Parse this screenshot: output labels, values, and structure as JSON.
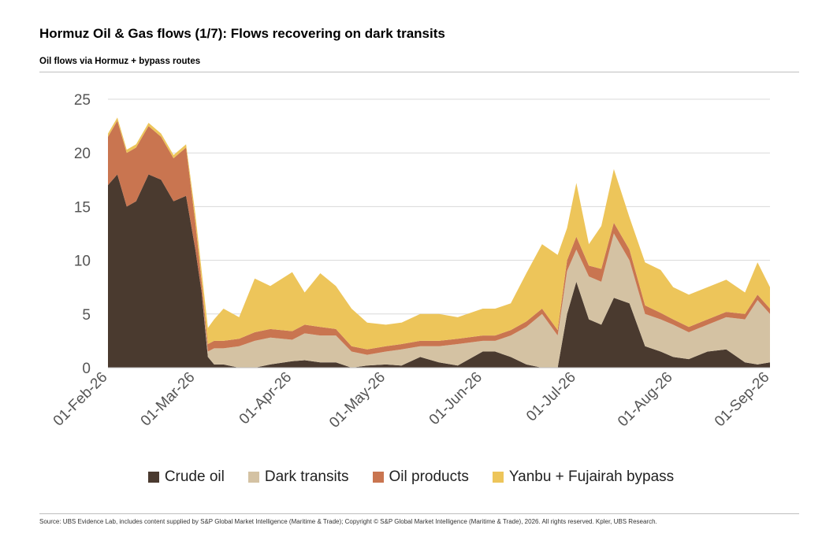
{
  "title": "Hormuz Oil & Gas flows (1/7): Flows recovering on dark transits",
  "subtitle": "Oil flows via Hormuz + bypass routes",
  "source": "Source: UBS Evidence Lab, includes content supplied by S&P Global Market Intelligence (Maritime & Trade); Copyright © S&P Global Market Intelligence (Maritime & Trade), 2026. All rights reserved. Kpler, UBS Research.",
  "colors": {
    "crude": "#4a3a2f",
    "dark": "#d4c2a3",
    "products": "#c97550",
    "bypass": "#edc55a",
    "grid": "#d9d9d9"
  },
  "chart_data": {
    "type": "area",
    "stacked": true,
    "ylim": [
      0,
      25
    ],
    "yticks": [
      "0",
      "5",
      "10",
      "15",
      "20",
      "25"
    ],
    "xticks": [
      "01-Feb-26",
      "01-Mar-26",
      "01-Apr-26",
      "01-May-26",
      "01-Jun-26",
      "01-Jul-26",
      "01-Aug-26",
      "01-Sep-26"
    ],
    "x_range": [
      "2026-02-01",
      "2026-09-01"
    ],
    "grid": true,
    "legend_position": "bottom",
    "x": [
      "2026-02-01",
      "2026-02-04",
      "2026-02-07",
      "2026-02-10",
      "2026-02-14",
      "2026-02-18",
      "2026-02-22",
      "2026-02-26",
      "2026-03-01",
      "2026-03-03",
      "2026-03-05",
      "2026-03-07",
      "2026-03-10",
      "2026-03-15",
      "2026-03-20",
      "2026-03-25",
      "2026-04-01",
      "2026-04-05",
      "2026-04-10",
      "2026-04-15",
      "2026-04-20",
      "2026-04-25",
      "2026-05-01",
      "2026-05-06",
      "2026-05-12",
      "2026-05-18",
      "2026-05-24",
      "2026-06-01",
      "2026-06-05",
      "2026-06-10",
      "2026-06-15",
      "2026-06-20",
      "2026-06-25",
      "2026-06-28",
      "2026-07-01",
      "2026-07-05",
      "2026-07-09",
      "2026-07-13",
      "2026-07-18",
      "2026-07-23",
      "2026-07-28",
      "2026-08-01",
      "2026-08-06",
      "2026-08-12",
      "2026-08-18",
      "2026-08-24",
      "2026-08-28",
      "2026-09-01"
    ],
    "series": [
      {
        "name": "Crude oil",
        "color_key": "crude",
        "values": [
          17,
          18,
          15,
          15.5,
          18,
          17.5,
          15.5,
          16,
          11,
          7,
          1,
          0.3,
          0.3,
          0,
          0,
          0.3,
          0.6,
          0.7,
          0.5,
          0.5,
          0,
          0.2,
          0.3,
          0.2,
          1,
          0.5,
          0.2,
          1.5,
          1.5,
          1,
          0.3,
          0,
          0,
          5,
          8,
          4.5,
          4,
          6.5,
          6,
          2,
          1.5,
          1,
          0.8,
          1.5,
          1.7,
          0.5,
          0.3,
          0.5
        ]
      },
      {
        "name": "Dark transits",
        "color_key": "dark",
        "values": [
          0,
          0,
          0,
          0,
          0,
          0,
          0,
          0,
          0,
          0,
          0.5,
          1.5,
          1.5,
          2,
          2.5,
          2.5,
          2,
          2.5,
          2.5,
          2.5,
          1.5,
          1,
          1.2,
          1.5,
          1,
          1.5,
          2,
          1,
          1,
          2,
          3.5,
          5,
          3,
          4,
          3,
          4,
          4,
          6,
          4,
          3,
          3,
          3,
          2.5,
          2.5,
          3,
          4,
          6,
          4.5
        ]
      },
      {
        "name": "Oil products",
        "color_key": "products",
        "values": [
          4.5,
          5,
          5,
          5,
          4.5,
          4,
          4,
          4.5,
          2.5,
          1,
          0.7,
          0.7,
          0.7,
          0.7,
          0.8,
          0.8,
          0.8,
          0.8,
          0.8,
          0.6,
          0.5,
          0.5,
          0.5,
          0.5,
          0.5,
          0.5,
          0.5,
          0.5,
          0.5,
          0.5,
          0.5,
          0.5,
          0.5,
          1,
          1.2,
          1,
          1.2,
          1,
          1,
          0.8,
          0.6,
          0.5,
          0.5,
          0.5,
          0.5,
          0.5,
          0.5,
          0.5
        ]
      },
      {
        "name": "Yanbu + Fujairah bypass",
        "color_key": "bypass",
        "values": [
          0.3,
          0.3,
          0.3,
          0.3,
          0.3,
          0.3,
          0.3,
          0.3,
          0.8,
          1,
          1.5,
          2,
          3,
          2,
          5,
          4,
          5.5,
          3,
          5,
          4,
          3.5,
          2.5,
          2,
          2,
          2.5,
          2.5,
          2,
          2.5,
          2.5,
          2.5,
          4.5,
          6,
          7,
          3,
          5,
          2,
          4,
          5,
          3,
          4,
          4,
          3,
          3,
          3,
          3,
          2,
          3,
          2
        ]
      }
    ]
  }
}
